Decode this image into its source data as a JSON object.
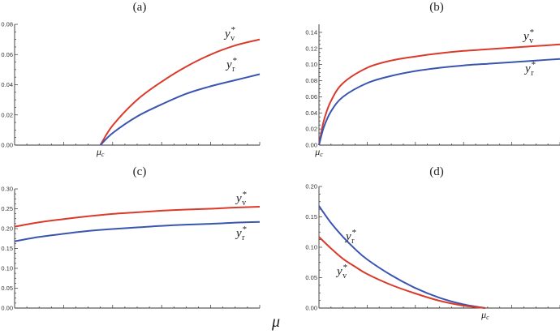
{
  "xlabel": "μ",
  "chart_data": [
    {
      "type": "line",
      "title": "(a)",
      "ylim": [
        0,
        0.08
      ],
      "yticks": [
        "0.00",
        "0.02",
        "0.04",
        "0.06",
        "0.08"
      ],
      "xlim": [
        0,
        1
      ],
      "x_marker": {
        "label": "μc",
        "x": 0.35
      },
      "series": [
        {
          "name": "y*v",
          "color": "#d93a2b",
          "x": [
            0.35,
            0.4,
            0.5,
            0.6,
            0.7,
            0.8,
            0.9,
            1.0
          ],
          "values": [
            0.0,
            0.013,
            0.03,
            0.042,
            0.052,
            0.06,
            0.066,
            0.07
          ]
        },
        {
          "name": "y*r",
          "color": "#3a55b0",
          "x": [
            0.35,
            0.4,
            0.5,
            0.6,
            0.7,
            0.8,
            0.9,
            1.0
          ],
          "values": [
            0.0,
            0.008,
            0.019,
            0.027,
            0.034,
            0.039,
            0.043,
            0.047
          ]
        }
      ],
      "labels": [
        {
          "series": 0,
          "text": "y",
          "sub": "v",
          "sup": "*"
        },
        {
          "series": 1,
          "text": "y",
          "sub": "r",
          "sup": "*"
        }
      ]
    },
    {
      "type": "line",
      "title": "(b)",
      "ylim": [
        0,
        0.15
      ],
      "yticks": [
        "0.00",
        "0.02",
        "0.04",
        "0.06",
        "0.08",
        "0.10",
        "0.12",
        "0.14"
      ],
      "xlim": [
        0,
        1
      ],
      "x_marker": {
        "label": "μc",
        "x": 0.0
      },
      "series": [
        {
          "name": "y*v",
          "color": "#d93a2b",
          "x": [
            0.0,
            0.02,
            0.05,
            0.1,
            0.2,
            0.3,
            0.4,
            0.5,
            0.6,
            0.7,
            0.8,
            0.9,
            1.0
          ],
          "values": [
            0.0,
            0.03,
            0.055,
            0.077,
            0.096,
            0.105,
            0.11,
            0.114,
            0.117,
            0.119,
            0.121,
            0.123,
            0.125
          ]
        },
        {
          "name": "y*r",
          "color": "#3a55b0",
          "x": [
            0.0,
            0.02,
            0.05,
            0.1,
            0.2,
            0.3,
            0.4,
            0.5,
            0.6,
            0.7,
            0.8,
            0.9,
            1.0
          ],
          "values": [
            0.0,
            0.022,
            0.042,
            0.06,
            0.077,
            0.086,
            0.092,
            0.096,
            0.099,
            0.101,
            0.103,
            0.105,
            0.107
          ]
        }
      ],
      "labels": [
        {
          "series": 0,
          "text": "y",
          "sub": "v",
          "sup": "*"
        },
        {
          "series": 1,
          "text": "y",
          "sub": "r",
          "sup": "*"
        }
      ]
    },
    {
      "type": "line",
      "title": "(c)",
      "ylim": [
        0,
        0.3
      ],
      "yticks": [
        "0.00",
        "0.05",
        "0.10",
        "0.15",
        "0.20",
        "0.25",
        "0.30"
      ],
      "xlim": [
        0,
        1
      ],
      "x_marker": null,
      "series": [
        {
          "name": "y*v",
          "color": "#d93a2b",
          "x": [
            0.0,
            0.1,
            0.2,
            0.3,
            0.4,
            0.5,
            0.6,
            0.7,
            0.8,
            0.9,
            1.0
          ],
          "values": [
            0.205,
            0.216,
            0.224,
            0.231,
            0.237,
            0.241,
            0.245,
            0.248,
            0.25,
            0.253,
            0.255
          ]
        },
        {
          "name": "y*r",
          "color": "#3a55b0",
          "x": [
            0.0,
            0.1,
            0.2,
            0.3,
            0.4,
            0.5,
            0.6,
            0.7,
            0.8,
            0.9,
            1.0
          ],
          "values": [
            0.168,
            0.179,
            0.187,
            0.194,
            0.199,
            0.203,
            0.207,
            0.21,
            0.212,
            0.215,
            0.217
          ]
        }
      ],
      "labels": [
        {
          "series": 0,
          "text": "y",
          "sub": "v",
          "sup": "*"
        },
        {
          "series": 1,
          "text": "y",
          "sub": "r",
          "sup": "*"
        }
      ]
    },
    {
      "type": "line",
      "title": "(d)",
      "ylim": [
        0,
        0.2
      ],
      "yticks": [
        "0.00",
        "0.05",
        "0.10",
        "0.15",
        "0.20"
      ],
      "xlim": [
        0,
        1
      ],
      "x_marker": {
        "label": "μc",
        "x": 0.69
      },
      "series": [
        {
          "name": "y*r",
          "color": "#3a55b0",
          "x": [
            0.0,
            0.05,
            0.1,
            0.15,
            0.2,
            0.3,
            0.4,
            0.5,
            0.6,
            0.69
          ],
          "values": [
            0.168,
            0.14,
            0.117,
            0.097,
            0.08,
            0.054,
            0.033,
            0.017,
            0.006,
            0.0
          ]
        },
        {
          "name": "y*v",
          "color": "#d93a2b",
          "x": [
            0.0,
            0.05,
            0.1,
            0.15,
            0.2,
            0.3,
            0.4,
            0.5,
            0.6,
            0.69
          ],
          "values": [
            0.117,
            0.098,
            0.081,
            0.068,
            0.056,
            0.038,
            0.024,
            0.012,
            0.004,
            0.0
          ]
        }
      ],
      "labels": [
        {
          "series": 0,
          "text": "y",
          "sub": "r",
          "sup": "*"
        },
        {
          "series": 1,
          "text": "y",
          "sub": "v",
          "sup": "*"
        }
      ]
    }
  ]
}
